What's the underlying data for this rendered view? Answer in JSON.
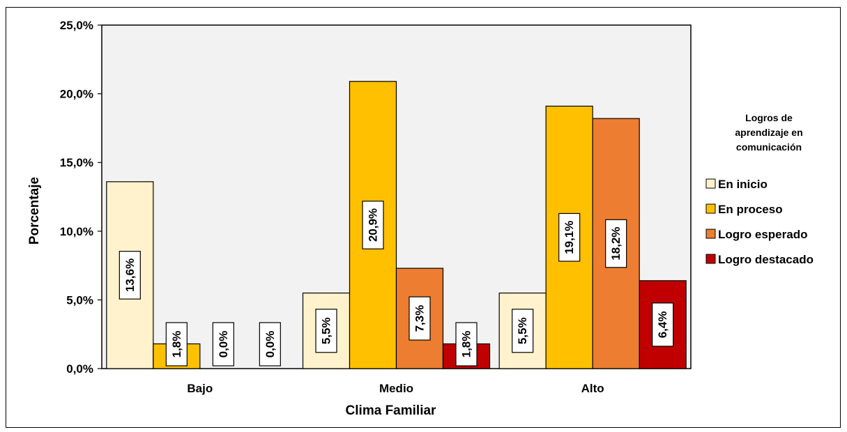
{
  "chart_data": {
    "type": "bar",
    "xlabel": "Clima Familiar",
    "ylabel": "Porcentaje",
    "categories": [
      "Bajo",
      "Medio",
      "Alto"
    ],
    "ylim": [
      0,
      25
    ],
    "yticks": [
      0,
      5,
      10,
      15,
      20,
      25
    ],
    "ytick_labels": [
      "0,0%",
      "5,0%",
      "10,0%",
      "15,0%",
      "20,0%",
      "25,0%"
    ],
    "legend": {
      "title": [
        "Logros de",
        "aprendizaje en",
        "comunicación"
      ],
      "position": "right"
    },
    "series": [
      {
        "name": "En inicio",
        "color": "#FFF2CC",
        "values": [
          13.6,
          5.5,
          5.5
        ],
        "labels": [
          "13,6%",
          "5,5%",
          "5,5%"
        ]
      },
      {
        "name": "En proceso",
        "color": "#FFC000",
        "values": [
          1.8,
          20.9,
          19.1
        ],
        "labels": [
          "1,8%",
          "20,9%",
          "19,1%"
        ]
      },
      {
        "name": "Logro esperado",
        "color": "#ED7D31",
        "values": [
          0.0,
          7.3,
          18.2
        ],
        "labels": [
          "0,0%",
          "7,3%",
          "18,2%"
        ]
      },
      {
        "name": "Logro destacado",
        "color": "#C00000",
        "values": [
          0.0,
          1.8,
          6.4
        ],
        "labels": [
          "0,0%",
          "1,8%",
          "6,4%"
        ]
      }
    ],
    "plot_background": "#F2F2F2",
    "grid": false
  }
}
